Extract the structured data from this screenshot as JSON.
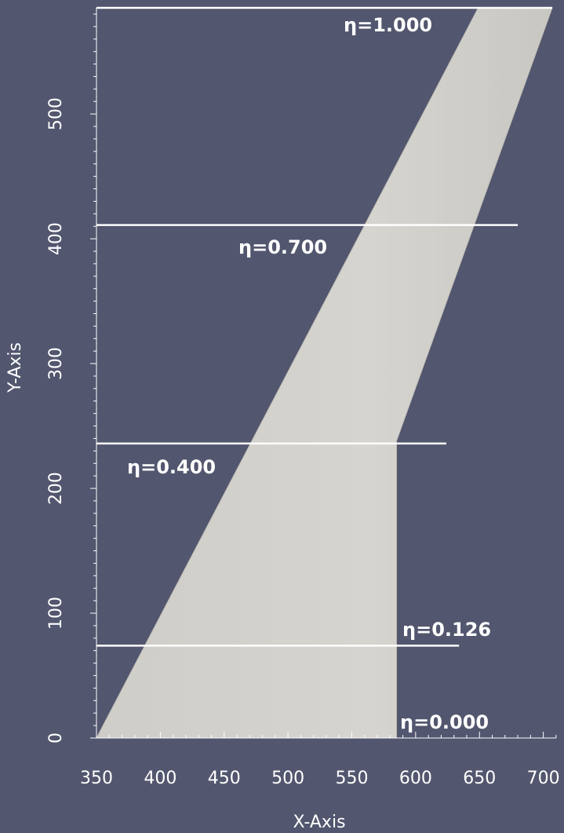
{
  "chart_data": {
    "type": "line",
    "title": "",
    "xlabel": "X-Axis",
    "ylabel": "Y-Axis",
    "xlim": [
      350,
      710
    ],
    "ylim": [
      0,
      585
    ],
    "x_ticks": [
      350,
      400,
      450,
      500,
      550,
      600,
      650,
      700
    ],
    "y_ticks": [
      0,
      100,
      200,
      300,
      400,
      500
    ],
    "wing_planform": {
      "outline": [
        {
          "x": 350,
          "y": 0
        },
        {
          "x": 585,
          "y": 0
        },
        {
          "x": 585,
          "y": 238
        },
        {
          "x": 707,
          "y": 585
        },
        {
          "x": 649,
          "y": 585
        }
      ],
      "fill_color": "#d5d3cd"
    },
    "stations": [
      {
        "label": "η=0.000",
        "y": 0,
        "x_start": 350,
        "x_end": 585
      },
      {
        "label": "η=0.126",
        "y": 74,
        "x_start": 350,
        "x_end": 634
      },
      {
        "label": "η=0.400",
        "y": 236,
        "x_start": 350,
        "x_end": 624
      },
      {
        "label": "η=0.700",
        "y": 411,
        "x_start": 350,
        "x_end": 680
      },
      {
        "label": "η=1.000",
        "y": 585,
        "x_start": 350,
        "x_end": 707
      }
    ],
    "grid": false,
    "colors": {
      "background": "#52566e",
      "lines": "#ffffff",
      "text": "#ffffff"
    }
  }
}
